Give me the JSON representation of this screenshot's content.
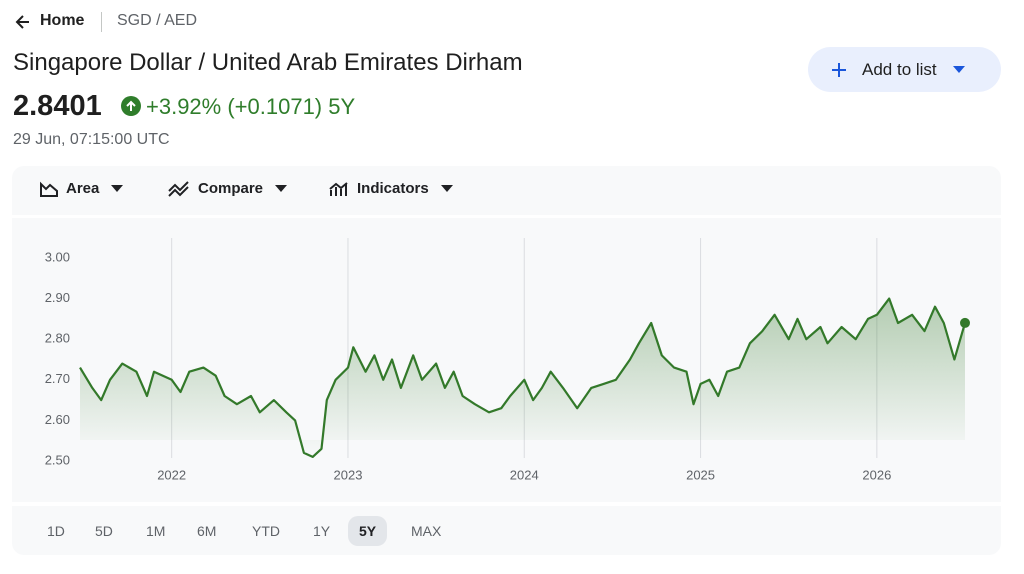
{
  "breadcrumb": {
    "home": "Home",
    "pair": "SGD / AED"
  },
  "header": {
    "title": "Singapore Dollar / United Arab Emirates Dirham",
    "price": "2.8401",
    "change": "+3.92% (+0.1071) 5Y",
    "timestamp": "29 Jun, 07:15:00 UTC",
    "button": "Add to list"
  },
  "toolbar": {
    "area": "Area",
    "compare": "Compare",
    "indicators": "Indicators"
  },
  "ranges": [
    "1D",
    "5D",
    "1M",
    "6M",
    "YTD",
    "1Y",
    "5Y",
    "MAX"
  ],
  "chart_data": {
    "type": "area",
    "color": "#33792a",
    "x": [
      2021.48,
      2021.55,
      2021.6,
      2021.65,
      2021.72,
      2021.8,
      2021.86,
      2021.9,
      2022.0,
      2022.05,
      2022.1,
      2022.18,
      2022.25,
      2022.3,
      2022.37,
      2022.45,
      2022.5,
      2022.58,
      2022.65,
      2022.7,
      2022.75,
      2022.8,
      2022.85,
      2022.88,
      2022.93,
      2023.0,
      2023.03,
      2023.1,
      2023.15,
      2023.2,
      2023.25,
      2023.3,
      2023.37,
      2023.42,
      2023.5,
      2023.55,
      2023.6,
      2023.65,
      2023.72,
      2023.8,
      2023.87,
      2023.92,
      2024.0,
      2024.05,
      2024.1,
      2024.15,
      2024.22,
      2024.3,
      2024.38,
      2024.45,
      2024.52,
      2024.6,
      2024.65,
      2024.72,
      2024.78,
      2024.85,
      2024.92,
      2024.96,
      2025.0,
      2025.05,
      2025.1,
      2025.15,
      2025.22,
      2025.28,
      2025.35,
      2025.42,
      2025.5,
      2025.55,
      2025.6,
      2025.68,
      2025.72,
      2025.8,
      2025.88,
      2025.95,
      2026.0,
      2026.07,
      2026.12,
      2026.2,
      2026.27,
      2026.33,
      2026.38,
      2026.44,
      2026.5
    ],
    "values": [
      2.73,
      2.68,
      2.65,
      2.7,
      2.74,
      2.72,
      2.66,
      2.72,
      2.7,
      2.67,
      2.72,
      2.73,
      2.71,
      2.66,
      2.64,
      2.66,
      2.62,
      2.65,
      2.62,
      2.6,
      2.52,
      2.51,
      2.53,
      2.65,
      2.7,
      2.73,
      2.78,
      2.72,
      2.76,
      2.7,
      2.75,
      2.68,
      2.76,
      2.7,
      2.74,
      2.68,
      2.72,
      2.66,
      2.64,
      2.62,
      2.63,
      2.66,
      2.7,
      2.65,
      2.68,
      2.72,
      2.68,
      2.63,
      2.68,
      2.69,
      2.7,
      2.75,
      2.79,
      2.84,
      2.76,
      2.73,
      2.72,
      2.64,
      2.69,
      2.7,
      2.66,
      2.72,
      2.73,
      2.79,
      2.82,
      2.86,
      2.8,
      2.85,
      2.8,
      2.83,
      2.79,
      2.83,
      2.8,
      2.85,
      2.86,
      2.9,
      2.84,
      2.86,
      2.82,
      2.88,
      2.84,
      2.75,
      2.8401
    ],
    "xlim": [
      2021.48,
      2026.5
    ],
    "ylim": [
      2.5,
      3.0
    ],
    "xticks": [
      2022,
      2023,
      2024,
      2025,
      2026
    ],
    "yticks": [
      {
        "value": 2.5,
        "label": "2.50"
      },
      {
        "value": 2.6,
        "label": "2.60"
      },
      {
        "value": 2.7,
        "label": "2.70"
      },
      {
        "value": 2.8,
        "label": "2.80"
      },
      {
        "value": 2.9,
        "label": "2.90"
      },
      {
        "value": 3.0,
        "label": "3.00"
      }
    ],
    "grid": true
  }
}
